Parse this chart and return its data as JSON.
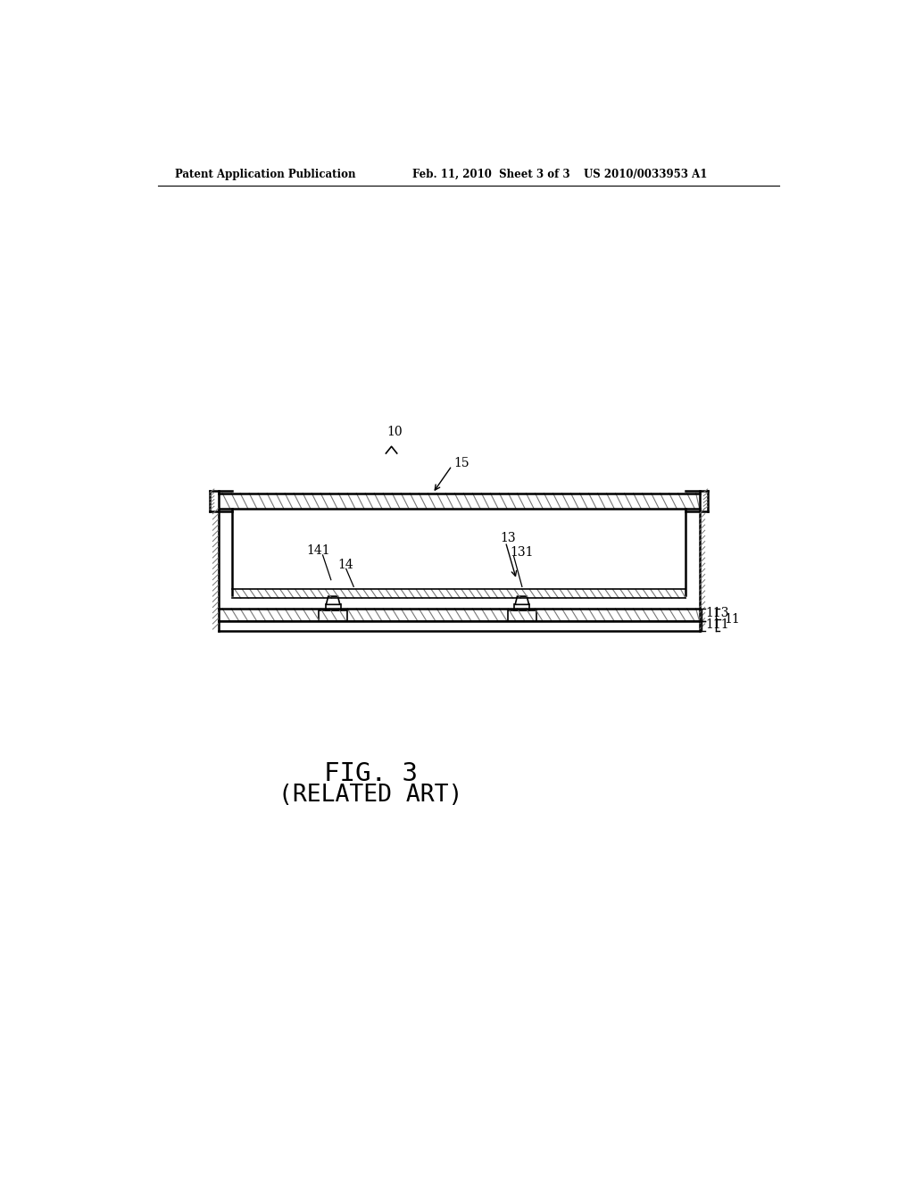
{
  "bg_color": "#ffffff",
  "line_color": "#000000",
  "header_left": "Patent Application Publication",
  "header_mid": "Feb. 11, 2010  Sheet 3 of 3",
  "header_right": "US 2010/0033953 A1",
  "fig_label": "FIG. 3",
  "fig_sublabel": "(RELATED ART)",
  "ref_10": "10",
  "ref_15": "15",
  "ref_14": "14",
  "ref_141": "141",
  "ref_13": "13",
  "ref_131": "131",
  "ref_113": "113",
  "ref_111": "111",
  "ref_11": "11"
}
